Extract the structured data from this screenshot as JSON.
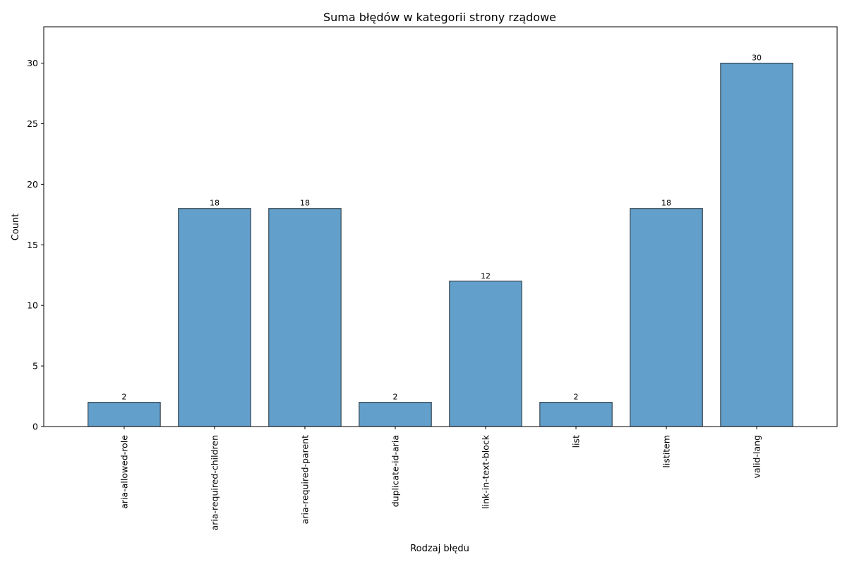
{
  "chart_data": {
    "type": "bar",
    "title": "Suma błędów w kategorii strony rządowe",
    "xlabel": "Rodzaj błędu",
    "ylabel": "Count",
    "categories": [
      "aria-allowed-role",
      "aria-required-children",
      "aria-required-parent",
      "duplicate-id-aria",
      "link-in-text-block",
      "list",
      "listitem",
      "valid-lang"
    ],
    "values": [
      2,
      18,
      18,
      2,
      12,
      2,
      18,
      30
    ],
    "ylim": [
      0,
      33
    ],
    "yticks": [
      0,
      5,
      10,
      15,
      20,
      25,
      30
    ],
    "grid": false,
    "bar_color": "#629fcb",
    "edge_color": "#2b3a44"
  }
}
